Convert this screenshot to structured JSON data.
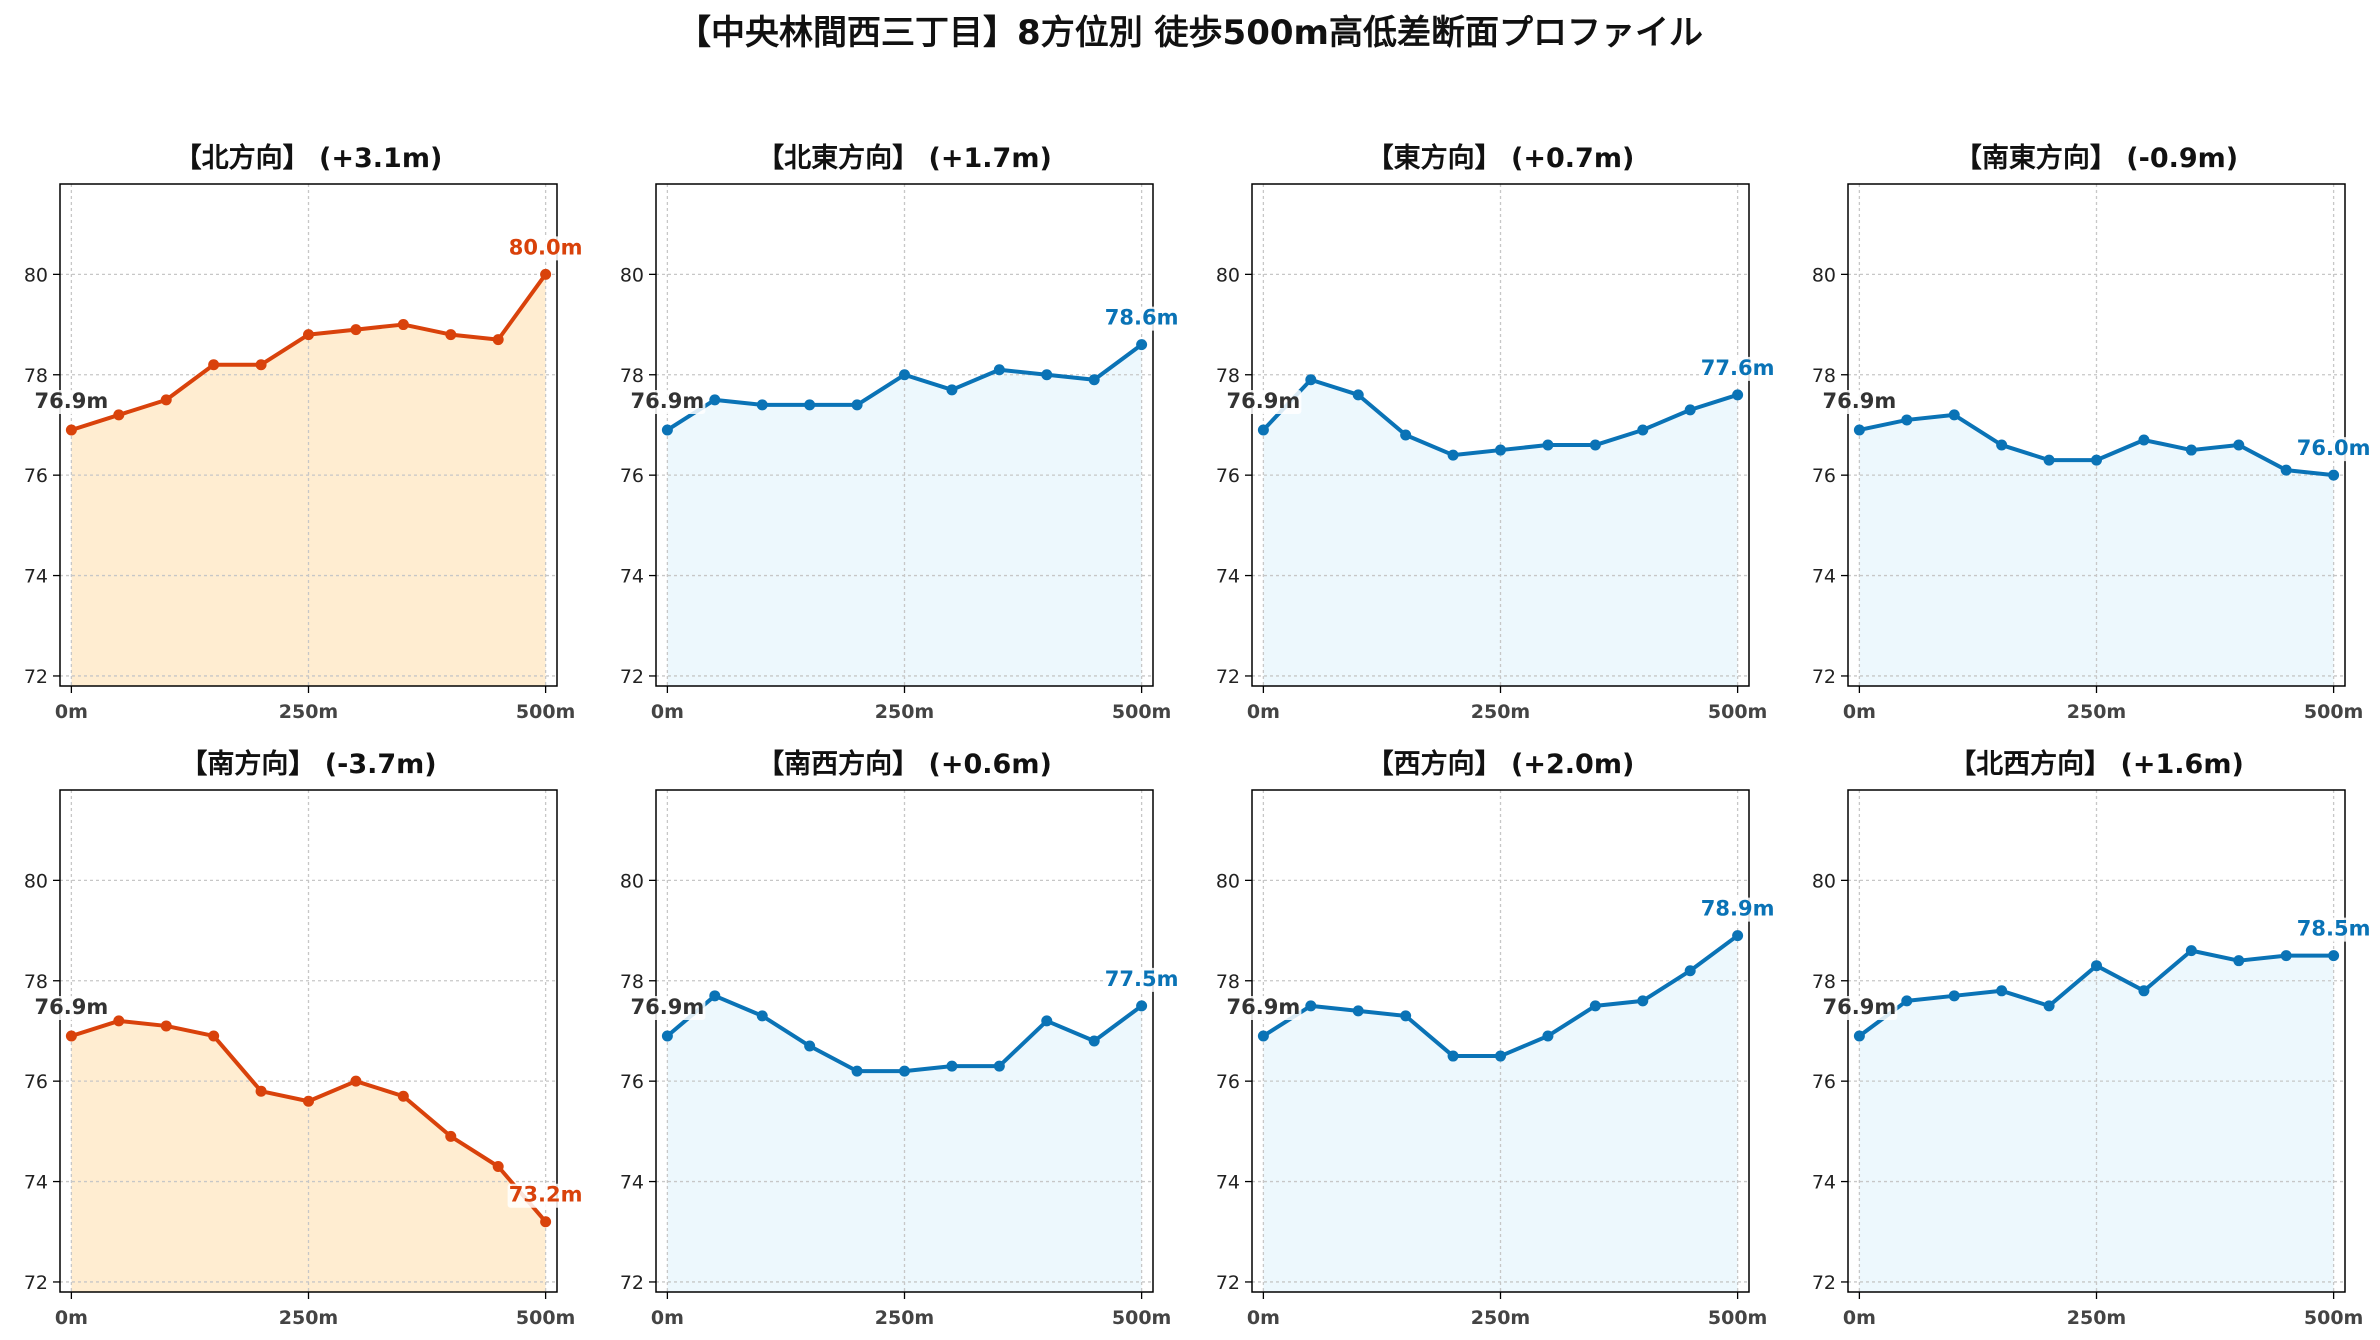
{
  "title": "【中央林間西三丁目】8方位別 徒歩500m高低差断面プロファイル",
  "colors": {
    "up_line": "#d9420b",
    "up_fill": "#ffedd1",
    "down_line": "#0a73b6",
    "down_fill": "#edf8fd",
    "start_label": "#333333",
    "grid": "#c7c7c7"
  },
  "chart_data": [
    {
      "type": "area",
      "title": "【北方向】 (+3.1m)",
      "x": [
        0,
        50,
        100,
        150,
        200,
        250,
        300,
        350,
        400,
        450,
        500
      ],
      "values": [
        76.9,
        77.2,
        77.5,
        78.2,
        78.2,
        78.8,
        78.9,
        79.0,
        78.8,
        78.7,
        80.0
      ],
      "start_label": "76.9m",
      "end_label": "80.0m",
      "highlight": true,
      "xticks": [
        0,
        250,
        500
      ],
      "xticklabels": [
        "0m",
        "250m",
        "500m"
      ],
      "yticks": [
        72,
        74,
        76,
        78,
        80
      ],
      "ylim": [
        71.8,
        81.8
      ],
      "xlim": [
        -12,
        512
      ],
      "grid": true
    },
    {
      "type": "area",
      "title": "【北東方向】 (+1.7m)",
      "x": [
        0,
        50,
        100,
        150,
        200,
        250,
        300,
        350,
        400,
        450,
        500
      ],
      "values": [
        76.9,
        77.5,
        77.4,
        77.4,
        77.4,
        78.0,
        77.7,
        78.1,
        78.0,
        77.9,
        78.6
      ],
      "start_label": "76.9m",
      "end_label": "78.6m",
      "highlight": false,
      "xticks": [
        0,
        250,
        500
      ],
      "xticklabels": [
        "0m",
        "250m",
        "500m"
      ],
      "yticks": [
        72,
        74,
        76,
        78,
        80
      ],
      "ylim": [
        71.8,
        81.8
      ],
      "xlim": [
        -12,
        512
      ],
      "grid": true
    },
    {
      "type": "area",
      "title": "【東方向】 (+0.7m)",
      "x": [
        0,
        50,
        100,
        150,
        200,
        250,
        300,
        350,
        400,
        450,
        500
      ],
      "values": [
        76.9,
        77.9,
        77.6,
        76.8,
        76.4,
        76.5,
        76.6,
        76.6,
        76.9,
        77.3,
        77.6
      ],
      "start_label": "76.9m",
      "end_label": "77.6m",
      "highlight": false,
      "xticks": [
        0,
        250,
        500
      ],
      "xticklabels": [
        "0m",
        "250m",
        "500m"
      ],
      "yticks": [
        72,
        74,
        76,
        78,
        80
      ],
      "ylim": [
        71.8,
        81.8
      ],
      "xlim": [
        -12,
        512
      ],
      "grid": true
    },
    {
      "type": "area",
      "title": "【南東方向】 (-0.9m)",
      "x": [
        0,
        50,
        100,
        150,
        200,
        250,
        300,
        350,
        400,
        450,
        500
      ],
      "values": [
        76.9,
        77.1,
        77.2,
        76.6,
        76.3,
        76.3,
        76.7,
        76.5,
        76.6,
        76.1,
        76.0
      ],
      "start_label": "76.9m",
      "end_label": "76.0m",
      "highlight": false,
      "xticks": [
        0,
        250,
        500
      ],
      "xticklabels": [
        "0m",
        "250m",
        "500m"
      ],
      "yticks": [
        72,
        74,
        76,
        78,
        80
      ],
      "ylim": [
        71.8,
        81.8
      ],
      "xlim": [
        -12,
        512
      ],
      "grid": true
    },
    {
      "type": "area",
      "title": "【南方向】 (-3.7m)",
      "x": [
        0,
        50,
        100,
        150,
        200,
        250,
        300,
        350,
        400,
        450,
        500
      ],
      "values": [
        76.9,
        77.2,
        77.1,
        76.9,
        75.8,
        75.6,
        76.0,
        75.7,
        74.9,
        74.3,
        73.2
      ],
      "start_label": "76.9m",
      "end_label": "73.2m",
      "highlight": true,
      "xticks": [
        0,
        250,
        500
      ],
      "xticklabels": [
        "0m",
        "250m",
        "500m"
      ],
      "yticks": [
        72,
        74,
        76,
        78,
        80
      ],
      "ylim": [
        71.8,
        81.8
      ],
      "xlim": [
        -12,
        512
      ],
      "grid": true
    },
    {
      "type": "area",
      "title": "【南西方向】 (+0.6m)",
      "x": [
        0,
        50,
        100,
        150,
        200,
        250,
        300,
        350,
        400,
        450,
        500
      ],
      "values": [
        76.9,
        77.7,
        77.3,
        76.7,
        76.2,
        76.2,
        76.3,
        76.3,
        77.2,
        76.8,
        77.5
      ],
      "start_label": "76.9m",
      "end_label": "77.5m",
      "highlight": false,
      "xticks": [
        0,
        250,
        500
      ],
      "xticklabels": [
        "0m",
        "250m",
        "500m"
      ],
      "yticks": [
        72,
        74,
        76,
        78,
        80
      ],
      "ylim": [
        71.8,
        81.8
      ],
      "xlim": [
        -12,
        512
      ],
      "grid": true
    },
    {
      "type": "area",
      "title": "【西方向】 (+2.0m)",
      "x": [
        0,
        50,
        100,
        150,
        200,
        250,
        300,
        350,
        400,
        450,
        500
      ],
      "values": [
        76.9,
        77.5,
        77.4,
        77.3,
        76.5,
        76.5,
        76.9,
        77.5,
        77.6,
        78.2,
        78.9
      ],
      "start_label": "76.9m",
      "end_label": "78.9m",
      "highlight": false,
      "xticks": [
        0,
        250,
        500
      ],
      "xticklabels": [
        "0m",
        "250m",
        "500m"
      ],
      "yticks": [
        72,
        74,
        76,
        78,
        80
      ],
      "ylim": [
        71.8,
        81.8
      ],
      "xlim": [
        -12,
        512
      ],
      "grid": true
    },
    {
      "type": "area",
      "title": "【北西方向】 (+1.6m)",
      "x": [
        0,
        50,
        100,
        150,
        200,
        250,
        300,
        350,
        400,
        450,
        500
      ],
      "values": [
        76.9,
        77.6,
        77.7,
        77.8,
        77.5,
        78.3,
        77.8,
        78.6,
        78.4,
        78.5,
        78.5
      ],
      "start_label": "76.9m",
      "end_label": "78.5m",
      "highlight": false,
      "xticks": [
        0,
        250,
        500
      ],
      "xticklabels": [
        "0m",
        "250m",
        "500m"
      ],
      "yticks": [
        72,
        74,
        76,
        78,
        80
      ],
      "ylim": [
        71.8,
        81.8
      ],
      "xlim": [
        -12,
        512
      ],
      "grid": true
    }
  ]
}
